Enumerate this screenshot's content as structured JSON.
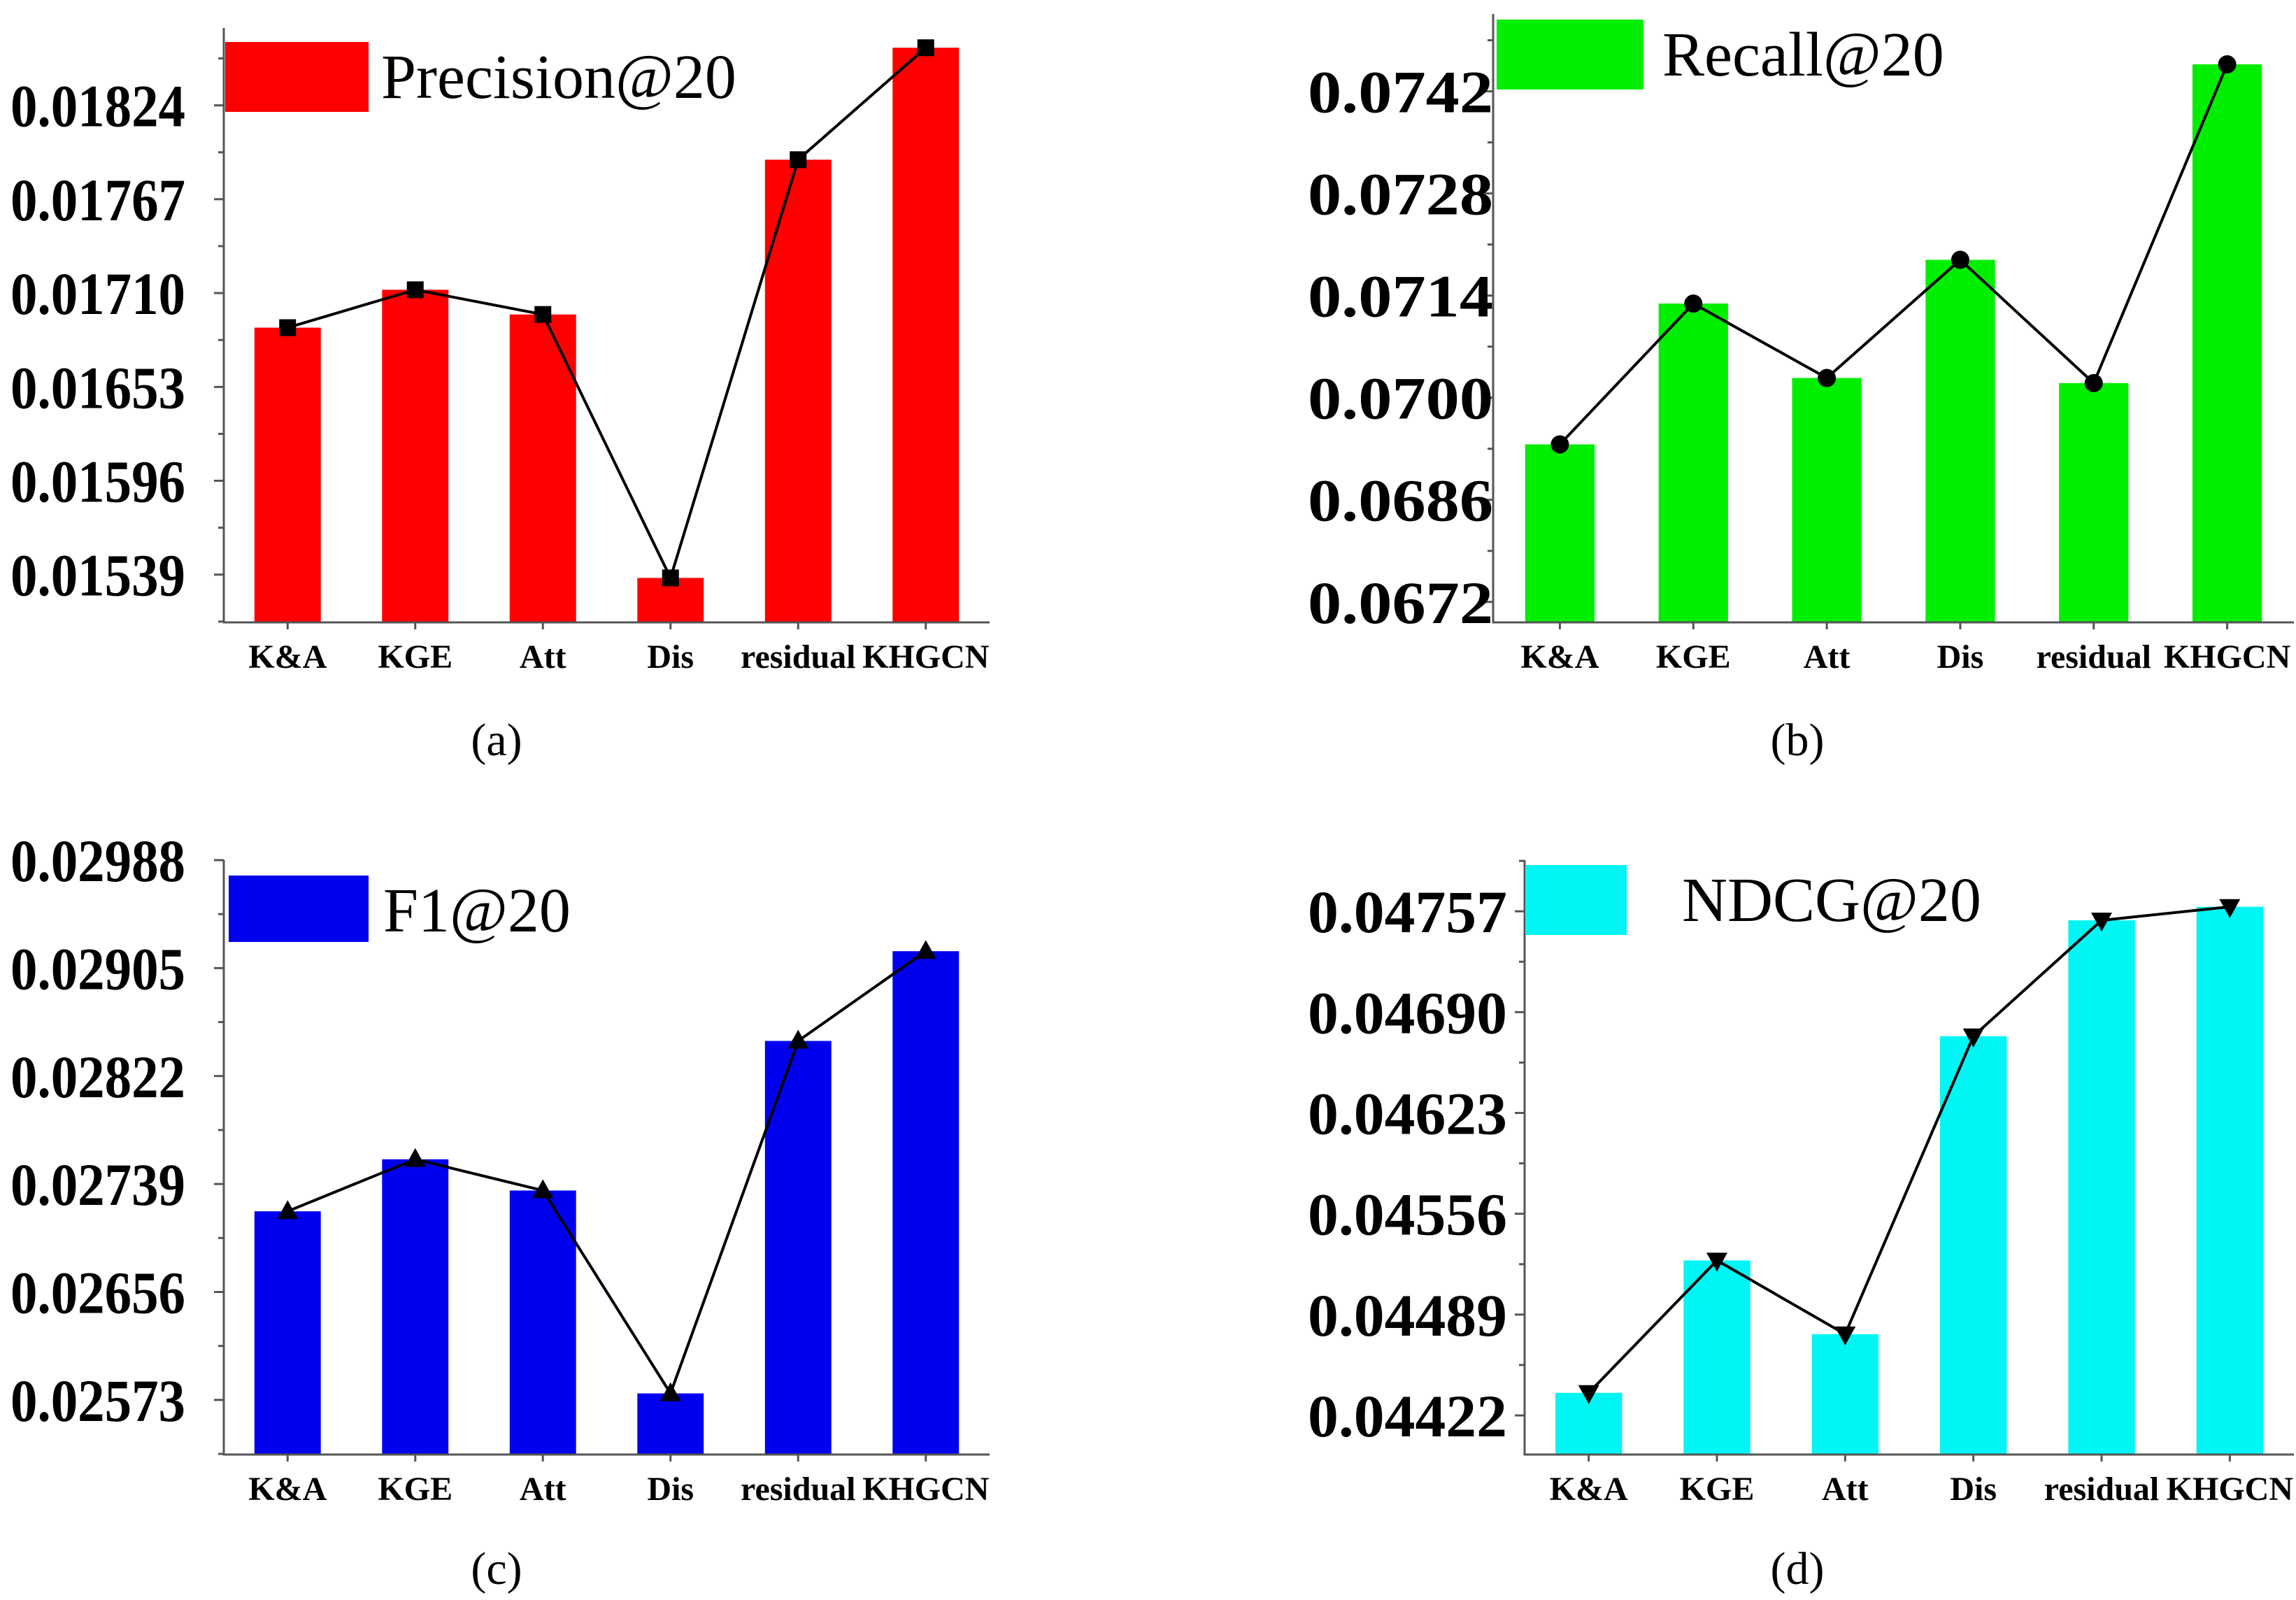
{
  "chart_data": [
    {
      "type": "bar",
      "panel_label": "(a)",
      "legend": "Precision@20",
      "bar_color": "#ff0000",
      "marker": "square",
      "categories": [
        "K&A",
        "KGE",
        "Att",
        "Dis",
        "residual",
        "KHGCN"
      ],
      "values": [
        0.01689,
        0.01712,
        0.01697,
        0.01537,
        0.01791,
        0.01859
      ],
      "yticks": [
        "0.01539",
        "0.01596",
        "0.01653",
        "0.01710",
        "0.01767",
        "0.01824"
      ],
      "ylim": [
        0.0151,
        0.01871
      ]
    },
    {
      "type": "bar",
      "panel_label": "(b)",
      "legend": "Recall@20",
      "bar_color": "#00ee00",
      "marker": "circle",
      "categories": [
        "K&A",
        "KGE",
        "Att",
        "Dis",
        "residual",
        "KHGCN"
      ],
      "values": [
        0.06936,
        0.07129,
        0.07027,
        0.07189,
        0.0702,
        0.07457
      ],
      "yticks": [
        "0.0672",
        "0.0686",
        "0.0700",
        "0.0714",
        "0.0728",
        "0.0742"
      ],
      "ylim": [
        0.06692,
        0.07526
      ]
    },
    {
      "type": "bar",
      "panel_label": "(c)",
      "legend": "F1@20",
      "bar_color": "#0000ee",
      "marker": "triangle-up",
      "categories": [
        "K&A",
        "KGE",
        "Att",
        "Dis",
        "residual",
        "KHGCN"
      ],
      "values": [
        0.02718,
        0.02758,
        0.02734,
        0.02578,
        0.02849,
        0.02918
      ],
      "yticks": [
        "0.02573",
        "0.02656",
        "0.02739",
        "0.02822",
        "0.02905",
        "0.02988"
      ],
      "ylim": [
        0.02531,
        0.02988
      ]
    },
    {
      "type": "bar",
      "panel_label": "(d)",
      "legend": "NDCG@20",
      "bar_color": "#00f5f5",
      "marker": "triangle-down",
      "categories": [
        "K&A",
        "KGE",
        "Att",
        "Dis",
        "residual",
        "KHGCN"
      ],
      "values": [
        0.04437,
        0.04525,
        0.04476,
        0.04674,
        0.04751,
        0.0476
      ],
      "yticks": [
        "0.04422",
        "0.04489",
        "0.04556",
        "0.04623",
        "0.04690",
        "0.04757"
      ],
      "ylim": [
        0.04396,
        0.04791
      ]
    }
  ]
}
